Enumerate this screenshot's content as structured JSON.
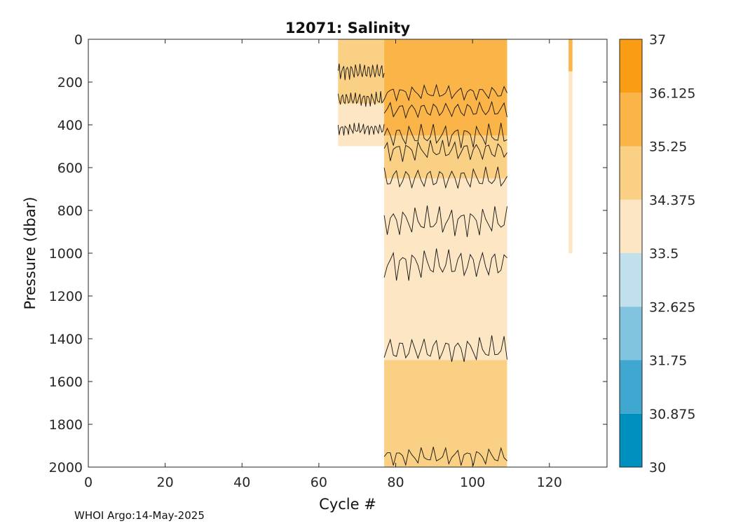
{
  "chart_data": {
    "type": "heatmap",
    "title": "12071:  Salinity",
    "xlabel": "Cycle #",
    "ylabel": "Pressure (dbar)",
    "xlim": [
      0,
      135
    ],
    "ylim": [
      2000,
      0
    ],
    "xticks": [
      0,
      20,
      40,
      60,
      80,
      100,
      120
    ],
    "yticks": [
      0,
      200,
      400,
      600,
      800,
      1000,
      1200,
      1400,
      1600,
      1800,
      2000
    ],
    "colorbar": {
      "min": 30,
      "max": 37,
      "tick_labels": [
        "37",
        "36.125",
        "35.25",
        "34.375",
        "33.5",
        "32.625",
        "31.75",
        "30.875",
        "30"
      ],
      "levels": [
        30,
        30.875,
        31.75,
        32.625,
        33.5,
        34.375,
        35.25,
        36.125,
        37
      ],
      "colors": [
        "#0090c0",
        "#40a8d0",
        "#80c4e0",
        "#c0e0ee",
        "#fce6c4",
        "#fad084",
        "#fbb448",
        "#fa9c14"
      ]
    },
    "data_blocks": [
      {
        "name": "early-cycles",
        "cycle_range": [
          65,
          77
        ],
        "pressure_range": [
          0,
          500
        ],
        "salinity": 34.0
      },
      {
        "name": "main-cycles",
        "cycle_range": [
          77,
          109
        ],
        "pressure_range": [
          0,
          2000
        ],
        "salinity": 34.0
      },
      {
        "name": "late-profile",
        "cycle_range": [
          125,
          126
        ],
        "pressure_range": [
          0,
          1000
        ],
        "salinity": 34.0
      }
    ],
    "bands": [
      {
        "name": "surface-high",
        "cycle_range": [
          77,
          109
        ],
        "pressure_range": [
          0,
          250
        ],
        "salinity": 35.7
      },
      {
        "name": "upper-mid",
        "cycle_range": [
          77,
          109
        ],
        "pressure_range": [
          250,
          450
        ],
        "salinity": 35.3
      },
      {
        "name": "thermocline",
        "cycle_range": [
          77,
          109
        ],
        "pressure_range": [
          450,
          650
        ],
        "salinity": 34.8
      },
      {
        "name": "deep-high",
        "cycle_range": [
          77,
          109
        ],
        "pressure_range": [
          1500,
          2000
        ],
        "salinity": 34.6
      },
      {
        "name": "early-surface",
        "cycle_range": [
          65,
          77
        ],
        "pressure_range": [
          0,
          300
        ],
        "salinity": 34.8
      },
      {
        "name": "late-surface",
        "cycle_range": [
          125,
          126
        ],
        "pressure_range": [
          0,
          150
        ],
        "salinity": 35.5
      }
    ]
  },
  "footer": "WHOI Argo:14-May-2025"
}
